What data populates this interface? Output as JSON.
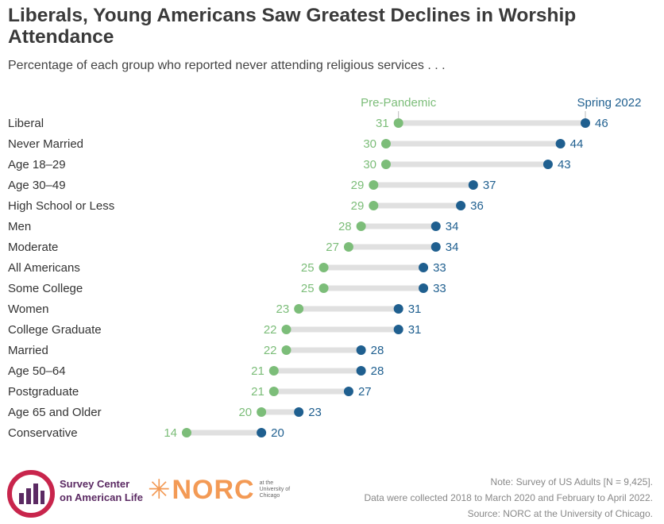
{
  "header": {
    "title": "Liberals, Young Americans Saw Greatest Declines in Worship Attendance",
    "subtitle": "Percentage of each group who reported never attending religious services . . ."
  },
  "chart_data": {
    "type": "dumbbell",
    "series": [
      {
        "name": "Pre-Pandemic",
        "color": "#7cbd79"
      },
      {
        "name": "Spring 2022",
        "color": "#1f5f8f"
      }
    ],
    "categories": [
      "Liberal",
      "Never Married",
      "Age 18–29",
      "Age 30–49",
      "High School or Less",
      "Men",
      "Moderate",
      "All Americans",
      "Some College",
      "Women",
      "College Graduate",
      "Married",
      "Age 50–64",
      "Postgraduate",
      "Age 65 and Older",
      "Conservative"
    ],
    "pre_pandemic": [
      31,
      30,
      30,
      29,
      29,
      28,
      27,
      25,
      25,
      23,
      22,
      22,
      21,
      21,
      20,
      14
    ],
    "spring_2022": [
      46,
      44,
      43,
      37,
      36,
      34,
      34,
      33,
      33,
      31,
      31,
      28,
      28,
      27,
      23,
      20
    ],
    "connector_color": "#e0e0e0"
  },
  "footer": {
    "note_line1": "Note: Survey of US Adults [N = 9,425].",
    "note_line2": "Data were collected 2018 to March 2020 and February to April 2022.",
    "note_line3": "Source: NORC at the University of Chicago.",
    "logo1_line1": "Survey Center",
    "logo1_line2": "on American Life",
    "logo2_name": "NORC",
    "logo2_small1": "at the",
    "logo2_small2": "University of",
    "logo2_small3": "Chicago"
  }
}
